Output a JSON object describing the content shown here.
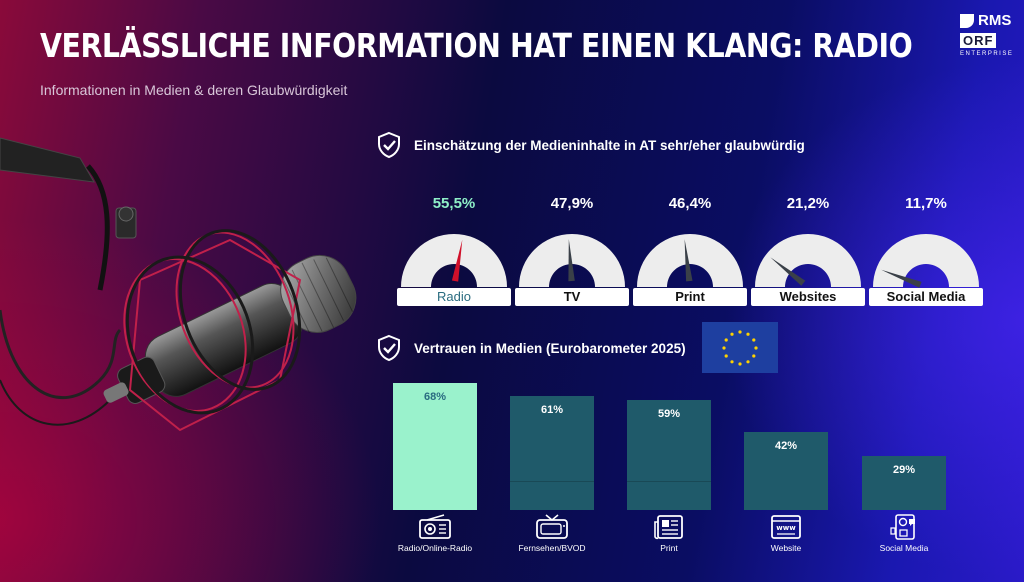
{
  "header": {
    "title": "VERLÄSSLICHE INFORMATION HAT EINEN KLANG: RADIO",
    "subtitle": "Informationen in Medien & deren Glaubwürdigkeit"
  },
  "logo": {
    "rms": "RMS",
    "orf": "ORF",
    "enterprise": "ENTERPRISE"
  },
  "colors": {
    "accent": "#9af2cc",
    "bar": "#1f5a6a",
    "gauge_accent": "#8ff0c8",
    "needle_accent": "#d0102a"
  },
  "chart_data": [
    {
      "type": "gauge",
      "title": "Einschätzung der Medieninhalte in AT sehr/eher glaubwürdig",
      "categories": [
        "Radio",
        "TV",
        "Print",
        "Websites",
        "Social Media"
      ],
      "values": [
        55.5,
        47.9,
        46.4,
        21.2,
        11.7
      ],
      "value_labels": [
        "55,5%",
        "47,9%",
        "46,4%",
        "21,2%",
        "11,7%"
      ],
      "unit": "%",
      "range": [
        0,
        100
      ],
      "highlight": "Radio"
    },
    {
      "type": "bar",
      "title": "Vertrauen in Medien (Eurobarometer 2025)",
      "categories": [
        "Radio/Online-Radio",
        "Fernsehen/BVOD",
        "Print",
        "Website",
        "Social Media"
      ],
      "icons": [
        "radio-icon",
        "tv-icon",
        "newspaper-icon",
        "website-icon",
        "social-media-icon"
      ],
      "values": [
        68,
        61,
        59,
        42,
        29
      ],
      "value_labels": [
        "68%",
        "61%",
        "59%",
        "42%",
        "29%"
      ],
      "unit": "%",
      "ylim": [
        0,
        68
      ],
      "highlight": "Radio/Online-Radio"
    }
  ]
}
